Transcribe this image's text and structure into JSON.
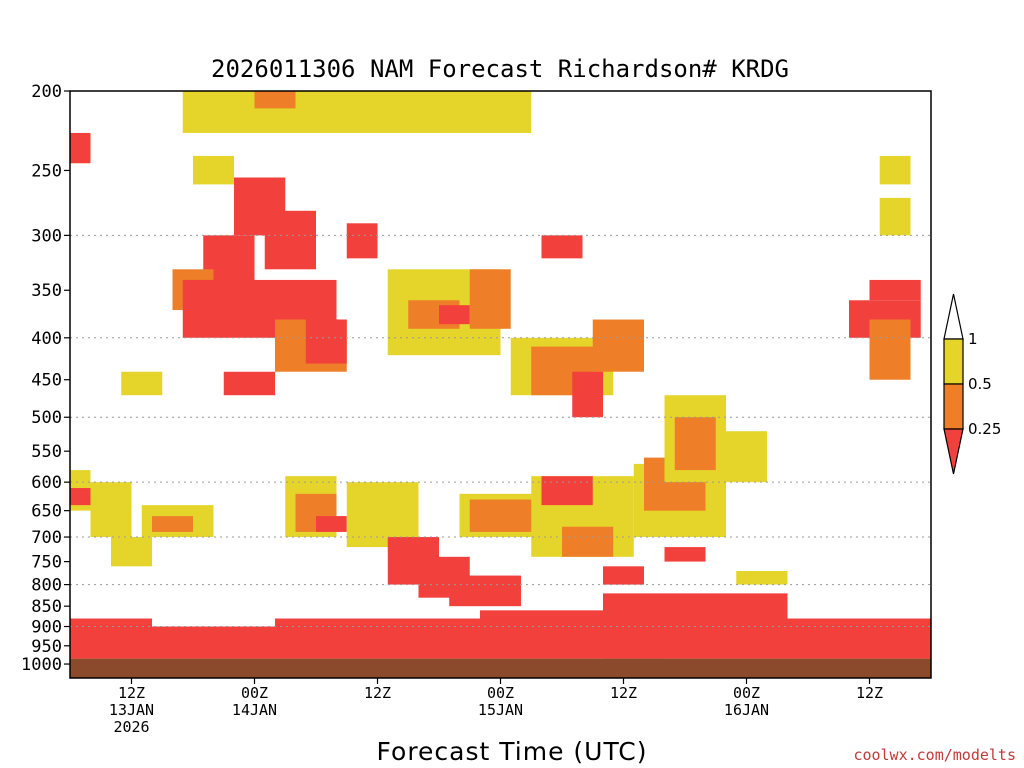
{
  "chart_data": {
    "type": "heatmap",
    "title": "2026011306 NAM Forecast Richardson# KRDG",
    "xlabel": "Forecast Time (UTC)",
    "ylabel": "",
    "y_axis": {
      "scale": "log",
      "inverted": true,
      "ylim": [
        200,
        1000
      ],
      "ticks": [
        200,
        250,
        300,
        350,
        400,
        450,
        500,
        550,
        600,
        650,
        700,
        750,
        800,
        850,
        900,
        950,
        1000
      ],
      "gridlines_at": [
        300,
        400,
        500,
        600,
        700,
        800,
        900
      ]
    },
    "x_axis": {
      "xlim": [
        "2026-01-13 06Z",
        "2026-01-16 18Z"
      ],
      "ticks": [
        {
          "time": "2026-01-13 12Z",
          "line1": "12Z",
          "line2": "13JAN",
          "line3": "2026"
        },
        {
          "time": "2026-01-14 00Z",
          "line1": "00Z",
          "line2": "14JAN",
          "line3": ""
        },
        {
          "time": "2026-01-14 12Z",
          "line1": "12Z",
          "line2": "",
          "line3": ""
        },
        {
          "time": "2026-01-15 00Z",
          "line1": "00Z",
          "line2": "15JAN",
          "line3": ""
        },
        {
          "time": "2026-01-15 12Z",
          "line1": "12Z",
          "line2": "",
          "line3": ""
        },
        {
          "time": "2026-01-16 00Z",
          "line1": "00Z",
          "line2": "16JAN",
          "line3": ""
        },
        {
          "time": "2026-01-16 12Z",
          "line1": "12Z",
          "line2": "",
          "line3": ""
        }
      ]
    },
    "colorbar": {
      "levels": [
        "1",
        "0.5",
        "0.25"
      ],
      "bins": [
        {
          "range": "> 1",
          "color": "#ffffff"
        },
        {
          "range": "0.5 - 1",
          "color": "#e5d52a"
        },
        {
          "range": "0.25 - 0.5",
          "color": "#ee7f28"
        },
        {
          "range": "< 0.25",
          "color": "#f2403c"
        }
      ]
    },
    "ground": {
      "surface_pressure_approx": 985,
      "color": "#8b4a2b"
    },
    "regions": [
      {
        "hours": [
          11,
          45
        ],
        "p": [
          200,
          225
        ],
        "bin": "0.5 - 1"
      },
      {
        "hours": [
          18,
          22
        ],
        "p": [
          200,
          210
        ],
        "bin": "0.25 - 0.5"
      },
      {
        "hours": [
          0,
          2
        ],
        "p": [
          225,
          245
        ],
        "bin": "< 0.25"
      },
      {
        "hours": [
          12,
          16
        ],
        "p": [
          240,
          260
        ],
        "bin": "0.5 - 1"
      },
      {
        "hours": [
          16,
          21
        ],
        "p": [
          255,
          300
        ],
        "bin": "< 0.25"
      },
      {
        "hours": [
          19,
          24
        ],
        "p": [
          280,
          330
        ],
        "bin": "< 0.25"
      },
      {
        "hours": [
          13,
          18
        ],
        "p": [
          300,
          350
        ],
        "bin": "< 0.25"
      },
      {
        "hours": [
          10,
          14
        ],
        "p": [
          330,
          370
        ],
        "bin": "0.25 - 0.5"
      },
      {
        "hours": [
          11,
          26
        ],
        "p": [
          340,
          400
        ],
        "bin": "< 0.25"
      },
      {
        "hours": [
          27,
          30
        ],
        "p": [
          290,
          320
        ],
        "bin": "< 0.25"
      },
      {
        "hours": [
          20,
          27
        ],
        "p": [
          380,
          440
        ],
        "bin": "0.25 - 0.5"
      },
      {
        "hours": [
          23,
          27
        ],
        "p": [
          380,
          430
        ],
        "bin": "< 0.25"
      },
      {
        "hours": [
          31,
          42
        ],
        "p": [
          330,
          420
        ],
        "bin": "0.5 - 1"
      },
      {
        "hours": [
          33,
          38
        ],
        "p": [
          360,
          390
        ],
        "bin": "0.25 - 0.5"
      },
      {
        "hours": [
          36,
          39
        ],
        "p": [
          365,
          385
        ],
        "bin": "< 0.25"
      },
      {
        "hours": [
          39,
          43
        ],
        "p": [
          330,
          390
        ],
        "bin": "0.25 - 0.5"
      },
      {
        "hours": [
          43,
          53
        ],
        "p": [
          400,
          470
        ],
        "bin": "0.5 - 1"
      },
      {
        "hours": [
          45,
          52
        ],
        "p": [
          410,
          470
        ],
        "bin": "0.25 - 0.5"
      },
      {
        "hours": [
          49,
          52
        ],
        "p": [
          440,
          500
        ],
        "bin": "< 0.25"
      },
      {
        "hours": [
          46,
          50
        ],
        "p": [
          300,
          320
        ],
        "bin": "< 0.25"
      },
      {
        "hours": [
          51,
          56
        ],
        "p": [
          380,
          440
        ],
        "bin": "0.25 - 0.5"
      },
      {
        "hours": [
          15,
          20
        ],
        "p": [
          440,
          470
        ],
        "bin": "< 0.25"
      },
      {
        "hours": [
          5,
          9
        ],
        "p": [
          440,
          470
        ],
        "bin": "0.5 - 1"
      },
      {
        "hours": [
          0,
          2
        ],
        "p": [
          580,
          650
        ],
        "bin": "0.5 - 1"
      },
      {
        "hours": [
          0,
          4
        ],
        "p": [
          610,
          640
        ],
        "bin": "< 0.25"
      },
      {
        "hours": [
          2,
          6
        ],
        "p": [
          600,
          700
        ],
        "bin": "0.5 - 1"
      },
      {
        "hours": [
          4,
          8
        ],
        "p": [
          700,
          760
        ],
        "bin": "0.5 - 1"
      },
      {
        "hours": [
          7,
          14
        ],
        "p": [
          640,
          700
        ],
        "bin": "0.5 - 1"
      },
      {
        "hours": [
          8,
          12
        ],
        "p": [
          660,
          690
        ],
        "bin": "0.25 - 0.5"
      },
      {
        "hours": [
          21,
          26
        ],
        "p": [
          590,
          700
        ],
        "bin": "0.5 - 1"
      },
      {
        "hours": [
          22,
          26
        ],
        "p": [
          620,
          690
        ],
        "bin": "0.25 - 0.5"
      },
      {
        "hours": [
          24,
          27
        ],
        "p": [
          660,
          690
        ],
        "bin": "< 0.25"
      },
      {
        "hours": [
          27,
          34
        ],
        "p": [
          600,
          720
        ],
        "bin": "0.5 - 1"
      },
      {
        "hours": [
          31,
          36
        ],
        "p": [
          700,
          800
        ],
        "bin": "< 0.25"
      },
      {
        "hours": [
          34,
          39
        ],
        "p": [
          740,
          830
        ],
        "bin": "< 0.25"
      },
      {
        "hours": [
          37,
          44
        ],
        "p": [
          780,
          850
        ],
        "bin": "< 0.25"
      },
      {
        "hours": [
          38,
          48
        ],
        "p": [
          620,
          700
        ],
        "bin": "0.5 - 1"
      },
      {
        "hours": [
          39,
          46
        ],
        "p": [
          630,
          690
        ],
        "bin": "0.25 - 0.5"
      },
      {
        "hours": [
          45,
          55
        ],
        "p": [
          590,
          740
        ],
        "bin": "0.5 - 1"
      },
      {
        "hours": [
          46,
          51
        ],
        "p": [
          590,
          640
        ],
        "bin": "< 0.25"
      },
      {
        "hours": [
          48,
          53
        ],
        "p": [
          680,
          740
        ],
        "bin": "0.25 - 0.5"
      },
      {
        "hours": [
          55,
          64
        ],
        "p": [
          570,
          700
        ],
        "bin": "0.5 - 1"
      },
      {
        "hours": [
          56,
          62
        ],
        "p": [
          560,
          650
        ],
        "bin": "0.25 - 0.5"
      },
      {
        "hours": [
          58,
          64
        ],
        "p": [
          470,
          600
        ],
        "bin": "0.5 - 1"
      },
      {
        "hours": [
          59,
          63
        ],
        "p": [
          500,
          580
        ],
        "bin": "0.25 - 0.5"
      },
      {
        "hours": [
          58,
          62
        ],
        "p": [
          720,
          750
        ],
        "bin": "< 0.25"
      },
      {
        "hours": [
          52,
          56
        ],
        "p": [
          760,
          800
        ],
        "bin": "< 0.25"
      },
      {
        "hours": [
          64,
          68
        ],
        "p": [
          520,
          600
        ],
        "bin": "0.5 - 1"
      },
      {
        "hours": [
          65,
          70
        ],
        "p": [
          770,
          800
        ],
        "bin": "0.5 - 1"
      },
      {
        "hours": [
          0,
          8
        ],
        "p": [
          880,
          985
        ],
        "bin": "< 0.25"
      },
      {
        "hours": [
          8,
          20
        ],
        "p": [
          900,
          985
        ],
        "bin": "< 0.25"
      },
      {
        "hours": [
          20,
          40
        ],
        "p": [
          880,
          985
        ],
        "bin": "< 0.25"
      },
      {
        "hours": [
          40,
          58
        ],
        "p": [
          860,
          985
        ],
        "bin": "< 0.25"
      },
      {
        "hours": [
          52,
          70
        ],
        "p": [
          820,
          985
        ],
        "bin": "< 0.25"
      },
      {
        "hours": [
          70,
          84
        ],
        "p": [
          880,
          985
        ],
        "bin": "< 0.25"
      },
      {
        "hours": [
          76,
          83
        ],
        "p": [
          360,
          400
        ],
        "bin": "< 0.25"
      },
      {
        "hours": [
          78,
          83
        ],
        "p": [
          340,
          360
        ],
        "bin": "< 0.25"
      },
      {
        "hours": [
          78,
          82
        ],
        "p": [
          380,
          450
        ],
        "bin": "0.25 - 0.5"
      },
      {
        "hours": [
          79,
          82
        ],
        "p": [
          270,
          300
        ],
        "bin": "0.5 - 1"
      },
      {
        "hours": [
          79,
          82
        ],
        "p": [
          240,
          260
        ],
        "bin": "0.5 - 1"
      }
    ]
  },
  "footer": {
    "credit": "coolwx.com/modelts"
  }
}
